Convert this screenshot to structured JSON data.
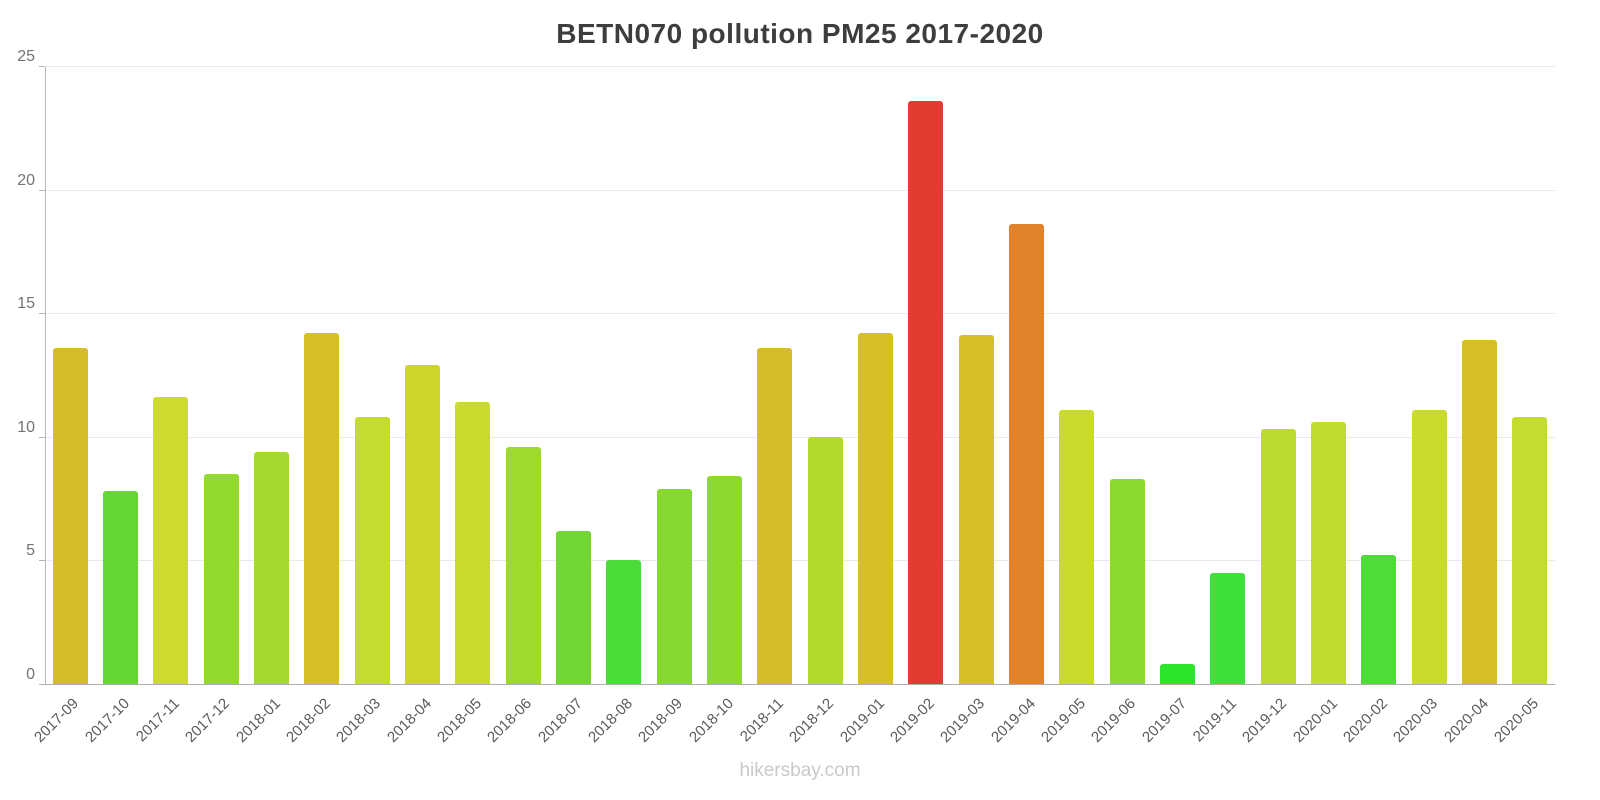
{
  "title": "BETN070 pollution PM25 2017-2020",
  "watermark": "hikersbay.com",
  "chart_data": {
    "type": "bar",
    "title": "BETN070 pollution PM25 2017-2020",
    "xlabel": "",
    "ylabel": "",
    "ylim": [
      0,
      25
    ],
    "yticks": [
      0,
      5,
      10,
      15,
      20,
      25
    ],
    "grid": true,
    "legend": "none",
    "categories": [
      "2017-09",
      "2017-10",
      "2017-11",
      "2017-12",
      "2018-01",
      "2018-02",
      "2018-03",
      "2018-04",
      "2018-05",
      "2018-06",
      "2018-07",
      "2018-08",
      "2018-09",
      "2018-10",
      "2018-11",
      "2018-12",
      "2019-01",
      "2019-02",
      "2019-03",
      "2019-04",
      "2019-05",
      "2019-06",
      "2019-07",
      "2019-11",
      "2019-12",
      "2020-01",
      "2020-02",
      "2020-03",
      "2020-04",
      "2020-05"
    ],
    "values": [
      13.6,
      7.8,
      11.6,
      8.5,
      9.4,
      14.2,
      10.8,
      12.9,
      11.4,
      9.6,
      6.2,
      5.0,
      7.9,
      8.4,
      13.6,
      10.0,
      14.2,
      23.6,
      14.1,
      18.6,
      11.1,
      8.3,
      0.8,
      4.5,
      10.3,
      10.6,
      5.2,
      11.1,
      13.9,
      10.8
    ],
    "colors": [
      "#d4bc2b",
      "#66d636",
      "#cdda2f",
      "#93d930",
      "#a5d92f",
      "#d5c127",
      "#c4dc30",
      "#cdd42c",
      "#cbdb2e",
      "#9fd930",
      "#72d734",
      "#4bdc3a",
      "#85d931",
      "#8dd930",
      "#d4bc2b",
      "#b3da2f",
      "#d5c127",
      "#e23c32",
      "#d5c027",
      "#e0832c",
      "#c9dc2e",
      "#8bd931",
      "#2ee52e",
      "#3fdf3c",
      "#bcda2f",
      "#c0dc2f",
      "#50dc38",
      "#c9dc2e",
      "#d5bf28",
      "#c4dc30"
    ]
  },
  "colors": {
    "title_text": "#3d3d3d",
    "axis_text": "#737373",
    "x_label_text": "#595959",
    "gridline": "#e9e9e9",
    "axis_line": "#b0b0b0",
    "watermark_text": "#c9c9c9",
    "background": "#ffffff"
  }
}
